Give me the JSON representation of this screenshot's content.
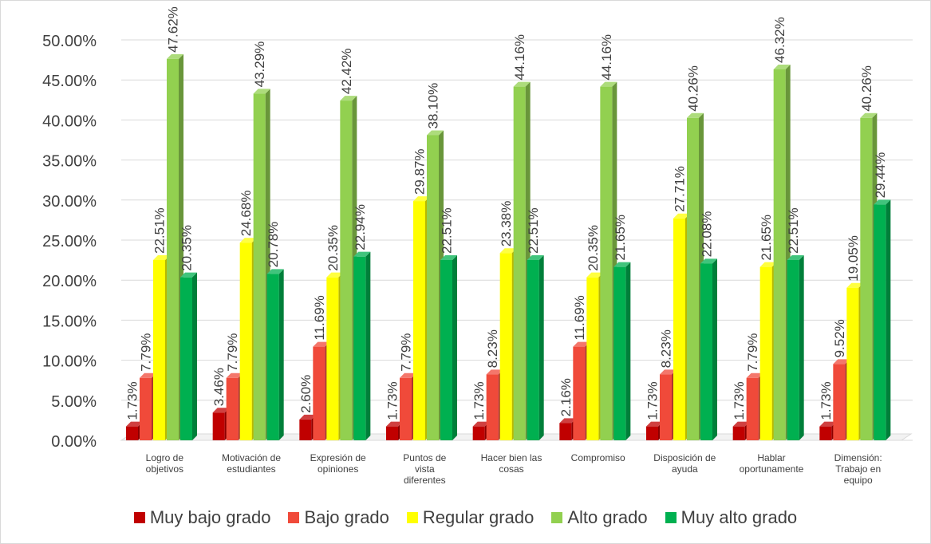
{
  "chart_data": {
    "type": "bar",
    "title": "",
    "xlabel": "",
    "ylabel": "",
    "ylim": [
      0,
      0.5
    ],
    "y_ticks": [
      "0.00%",
      "5.00%",
      "10.00%",
      "15.00%",
      "20.00%",
      "25.00%",
      "30.00%",
      "35.00%",
      "40.00%",
      "45.00%",
      "50.00%"
    ],
    "grid": true,
    "legend_position": "bottom",
    "categories": [
      "Logro de objetivos",
      "Motivación de estudiantes",
      "Expresión de opiniones",
      "Puntos de vista diferentes",
      "Hacer bien las cosas",
      "Compromiso",
      "Disposición de ayuda",
      "Hablar oportunamente",
      "Dimensión: Trabajo en equipo"
    ],
    "series": [
      {
        "name": "Muy bajo grado",
        "color": "#c00000",
        "values": [
          0.0173,
          0.0346,
          0.026,
          0.0173,
          0.0173,
          0.0216,
          0.0173,
          0.0173,
          0.0173
        ],
        "labels": [
          "1.73%",
          "3.46%",
          "2.60%",
          "1.73%",
          "1.73%",
          "2.16%",
          "1.73%",
          "1.73%",
          "1.73%"
        ]
      },
      {
        "name": "Bajo grado",
        "color": "#f04a3a",
        "values": [
          0.0779,
          0.0779,
          0.1169,
          0.0779,
          0.0823,
          0.1169,
          0.0823,
          0.0779,
          0.0952
        ],
        "labels": [
          "7.79%",
          "7.79%",
          "11.69%",
          "7.79%",
          "8.23%",
          "11.69%",
          "8.23%",
          "7.79%",
          "9.52%"
        ]
      },
      {
        "name": "Regular grado",
        "color": "#ffff00",
        "values": [
          0.2251,
          0.2468,
          0.2035,
          0.2987,
          0.2338,
          0.2035,
          0.2771,
          0.2165,
          0.1905
        ],
        "labels": [
          "22.51%",
          "24.68%",
          "20.35%",
          "29.87%",
          "23.38%",
          "20.35%",
          "27.71%",
          "21.65%",
          "19.05%"
        ]
      },
      {
        "name": "Alto grado",
        "color": "#92d050",
        "values": [
          0.4762,
          0.4329,
          0.4242,
          0.381,
          0.4416,
          0.4416,
          0.4026,
          0.4632,
          0.4026
        ],
        "labels": [
          "47.62%",
          "43.29%",
          "42.42%",
          "38.10%",
          "44.16%",
          "44.16%",
          "40.26%",
          "46.32%",
          "40.26%"
        ]
      },
      {
        "name": "Muy alto grado",
        "color": "#00b050",
        "values": [
          0.2035,
          0.2078,
          0.2294,
          0.2251,
          0.2251,
          0.2165,
          0.2208,
          0.2251,
          0.2944
        ],
        "labels": [
          "20.35%",
          "20.78%",
          "22.94%",
          "22.51%",
          "22.51%",
          "21.65%",
          "22.08%",
          "22.51%",
          "29.44%"
        ]
      }
    ]
  }
}
